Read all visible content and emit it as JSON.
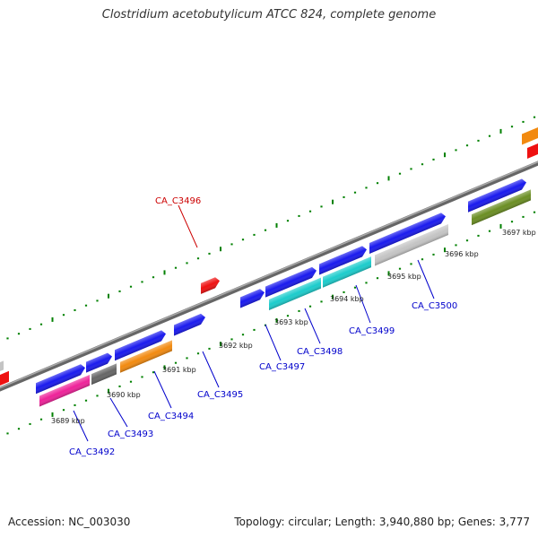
{
  "title": "Clostridium acetobutylicum ATCC 824, complete genome",
  "footer": {
    "accession": "Accession: NC_003030",
    "summary": "Topology: circular; Length: 3,940,880 bp; Genes: 3,777"
  },
  "colors": {
    "backbone": "#888888",
    "ticks": "#008000",
    "label_blue": "#0000cc",
    "label_red": "#cc0000",
    "blue": "#1a1aee",
    "pink": "#ee2299",
    "grey": "#666666",
    "orange": "#f28a10",
    "cyan": "#1ccccc",
    "silver": "#c4c4c4",
    "olive": "#6b8e23",
    "red": "#ee1111"
  },
  "kbp_labels": [
    "3689 kbp",
    "3690 kbp",
    "3691 kbp",
    "3692 kbp",
    "3693 kbp",
    "3694 kbp",
    "3695 kbp",
    "3696 kbp",
    "3697 kbp"
  ],
  "gene_labels": [
    "CA_C3492",
    "CA_C3493",
    "CA_C3494",
    "CA_C3495",
    "CA_C3496",
    "CA_C3497",
    "CA_C3498",
    "CA_C3499",
    "CA_C3500"
  ]
}
